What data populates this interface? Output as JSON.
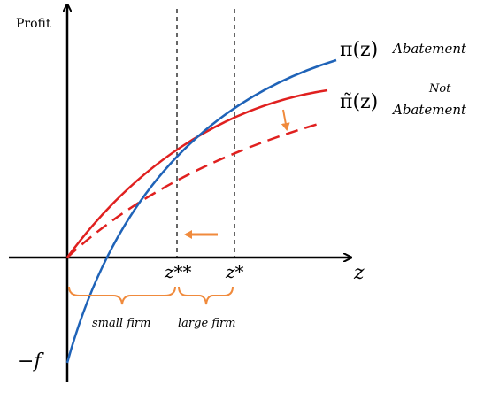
{
  "axes": {
    "y_label": "Profit",
    "x_label": "z",
    "intercept_label": "−f"
  },
  "curves": [
    {
      "label": "π(z)",
      "sub_label": "Abatement"
    },
    {
      "label": "π̃(z)",
      "sup_label": "Not",
      "sub_label": "Abatement"
    }
  ],
  "thresholds": [
    {
      "label": "z**"
    },
    {
      "label": "z*"
    }
  ],
  "regions": [
    {
      "label": "small firm"
    },
    {
      "label": "large firm"
    }
  ]
}
